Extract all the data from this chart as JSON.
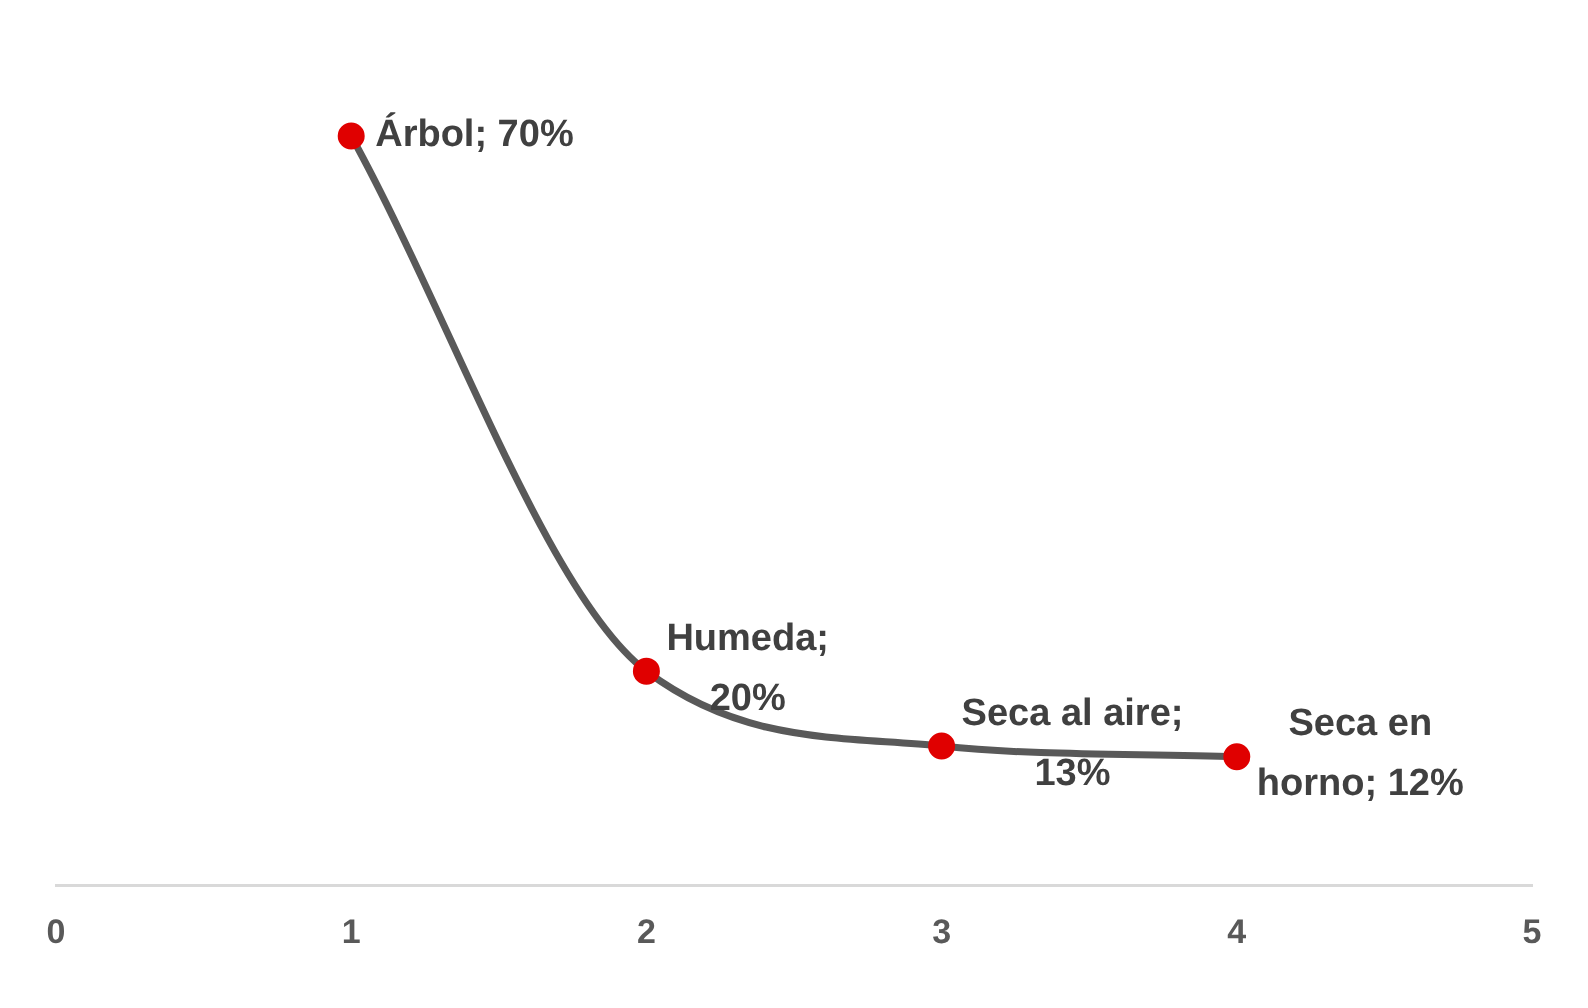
{
  "chart_data": {
    "type": "line",
    "x": [
      1,
      2,
      3,
      4
    ],
    "xlim": [
      0,
      5
    ],
    "xticks": [
      0,
      1,
      2,
      3,
      4,
      5
    ],
    "tick_labels": "x",
    "grid": false,
    "legend": false,
    "marker": "circle",
    "series": [
      {
        "color": "#595959",
        "colors": [
          "#e00000",
          "#e00000",
          "#e00000",
          "#e00000"
        ],
        "values": [
          70,
          20,
          13,
          12
        ],
        "value_labels": [
          "Árbol; 70%",
          "Humeda;\n20%",
          "Seca al aire;\n13%",
          "Seca en\nhorno; 12%"
        ]
      }
    ]
  }
}
